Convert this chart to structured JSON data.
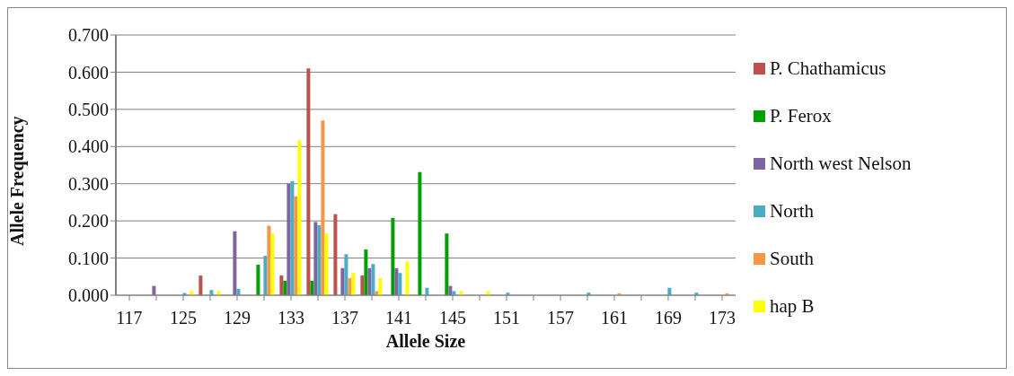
{
  "chart_data": {
    "type": "bar",
    "xlabel": "Allele Size",
    "ylabel": "Allele Frequency",
    "categories": [
      "117",
      null,
      "125",
      null,
      "129",
      null,
      "133",
      null,
      "137",
      null,
      "141",
      null,
      "145",
      null,
      "151",
      null,
      "157",
      null,
      "161",
      null,
      "169",
      null,
      "173"
    ],
    "series": [
      {
        "name": "P. Chathamicus",
        "color": "#c0504d",
        "values": [
          0,
          0,
          0,
          0.053,
          0,
          0,
          0.053,
          0.61,
          0.218,
          0.053,
          0,
          0,
          0,
          0,
          0,
          0,
          0,
          0,
          0,
          0,
          0,
          0,
          0
        ]
      },
      {
        "name": "P. Ferox",
        "color": "#00a000",
        "values": [
          0,
          0,
          0,
          0,
          0,
          0.082,
          0.039,
          0.039,
          0,
          0.123,
          0.208,
          0.331,
          0.166,
          0,
          0,
          0,
          0,
          0,
          0,
          0,
          0,
          0,
          0
        ]
      },
      {
        "name": "North west Nelson",
        "color": "#8064a2",
        "values": [
          0,
          0.025,
          0,
          0,
          0.172,
          0,
          0.3,
          0.197,
          0.073,
          0.073,
          0.073,
          0,
          0.025,
          0,
          0,
          0,
          0,
          0,
          0,
          0,
          0,
          0,
          0
        ]
      },
      {
        "name": "North",
        "color": "#4bacc6",
        "values": [
          0,
          0,
          0.006,
          0.014,
          0.017,
          0.106,
          0.307,
          0.188,
          0.11,
          0.084,
          0.06,
          0.02,
          0.011,
          0,
          0.007,
          0,
          0,
          0.007,
          0,
          0,
          0.02,
          0.007,
          0
        ]
      },
      {
        "name": "South",
        "color": "#f79646",
        "values": [
          0,
          0,
          0,
          0,
          0,
          0.187,
          0.266,
          0.47,
          0.046,
          0.011,
          0,
          0,
          0,
          0,
          0,
          0,
          0,
          0,
          0.005,
          0,
          0,
          0,
          0.005
        ]
      },
      {
        "name": "hap B",
        "color": "#ffff00",
        "values": [
          0,
          0,
          0.011,
          0.011,
          0,
          0.166,
          0.417,
          0.166,
          0.06,
          0.046,
          0.091,
          0,
          0.011,
          0.011,
          0,
          0,
          0,
          0,
          0,
          0,
          0,
          0,
          0
        ]
      }
    ],
    "ylim": [
      0,
      0.7
    ],
    "yticks": [
      {
        "value": 0,
        "label": "0.000"
      },
      {
        "value": 0.1,
        "label": "0.100"
      },
      {
        "value": 0.2,
        "label": "0.200"
      },
      {
        "value": 0.3,
        "label": "0.300"
      },
      {
        "value": 0.4,
        "label": "0.400"
      },
      {
        "value": 0.5,
        "label": "0.500"
      },
      {
        "value": 0.6,
        "label": "0.600"
      },
      {
        "value": 0.7,
        "label": "0.700"
      }
    ],
    "grid": "y",
    "legend": "right"
  }
}
